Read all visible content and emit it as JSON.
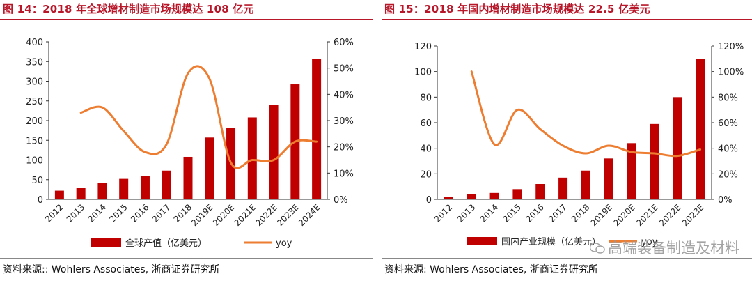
{
  "charts": [
    {
      "title": "图 14：2018 年全球增材制造市场规模达 108 亿元",
      "source": "资料来源:: Wohlers Associates, 浙商证券研究所"
    },
    {
      "title": "图 15：2018 年国内增材制造市场规模达 22.5 亿美元",
      "source": "资料来源: Wohlers Associates, 浙商证券研究所",
      "watermark": "高端装备制造及材料"
    }
  ],
  "colors": {
    "bar": "#c00000",
    "line": "#ed7d31",
    "title": "#b8172a"
  },
  "chart_data": [
    {
      "type": "bar",
      "categories": [
        "2012",
        "2013",
        "2014",
        "2015",
        "2016",
        "2017",
        "2018",
        "2019E",
        "2020E",
        "2021E",
        "2022E",
        "2023E",
        "2024E"
      ],
      "series": [
        {
          "name": "全球产值（亿美元）",
          "type": "bar",
          "axis": "left",
          "values": [
            22,
            30,
            41,
            52,
            60,
            73,
            108,
            157,
            181,
            208,
            239,
            292,
            357
          ]
        },
        {
          "name": "yoy",
          "type": "line",
          "axis": "right",
          "values": [
            null,
            33,
            35,
            26,
            18,
            21,
            48,
            46,
            14,
            15,
            15,
            22,
            22
          ]
        }
      ],
      "ylim_left": [
        0,
        400
      ],
      "yticks_left": [
        0,
        50,
        100,
        150,
        200,
        250,
        300,
        350,
        400
      ],
      "ylim_right": [
        0,
        60
      ],
      "yticks_right": [
        "0%",
        "10%",
        "20%",
        "30%",
        "40%",
        "50%",
        "60%"
      ],
      "grid": false,
      "legend": "bottom"
    },
    {
      "type": "bar",
      "categories": [
        "2012",
        "2013",
        "2014",
        "2015",
        "2016",
        "2017",
        "2018",
        "2019E",
        "2020E",
        "2021E",
        "2022E",
        "2023E"
      ],
      "series": [
        {
          "name": "国内产业规模（亿美元）",
          "type": "bar",
          "axis": "left",
          "values": [
            2,
            4,
            5,
            8,
            12,
            17,
            22.5,
            32,
            44,
            59,
            80,
            110
          ]
        },
        {
          "name": "yoy",
          "type": "line",
          "axis": "right",
          "values": [
            null,
            100,
            43,
            70,
            55,
            42,
            36,
            42,
            37,
            36,
            34,
            39
          ]
        }
      ],
      "ylim_left": [
        0,
        120
      ],
      "yticks_left": [
        0,
        20,
        40,
        60,
        80,
        100,
        120
      ],
      "ylim_right": [
        0,
        120
      ],
      "yticks_right": [
        "0%",
        "20%",
        "40%",
        "60%",
        "80%",
        "100%",
        "120%"
      ],
      "grid": false,
      "legend": "bottom"
    }
  ]
}
